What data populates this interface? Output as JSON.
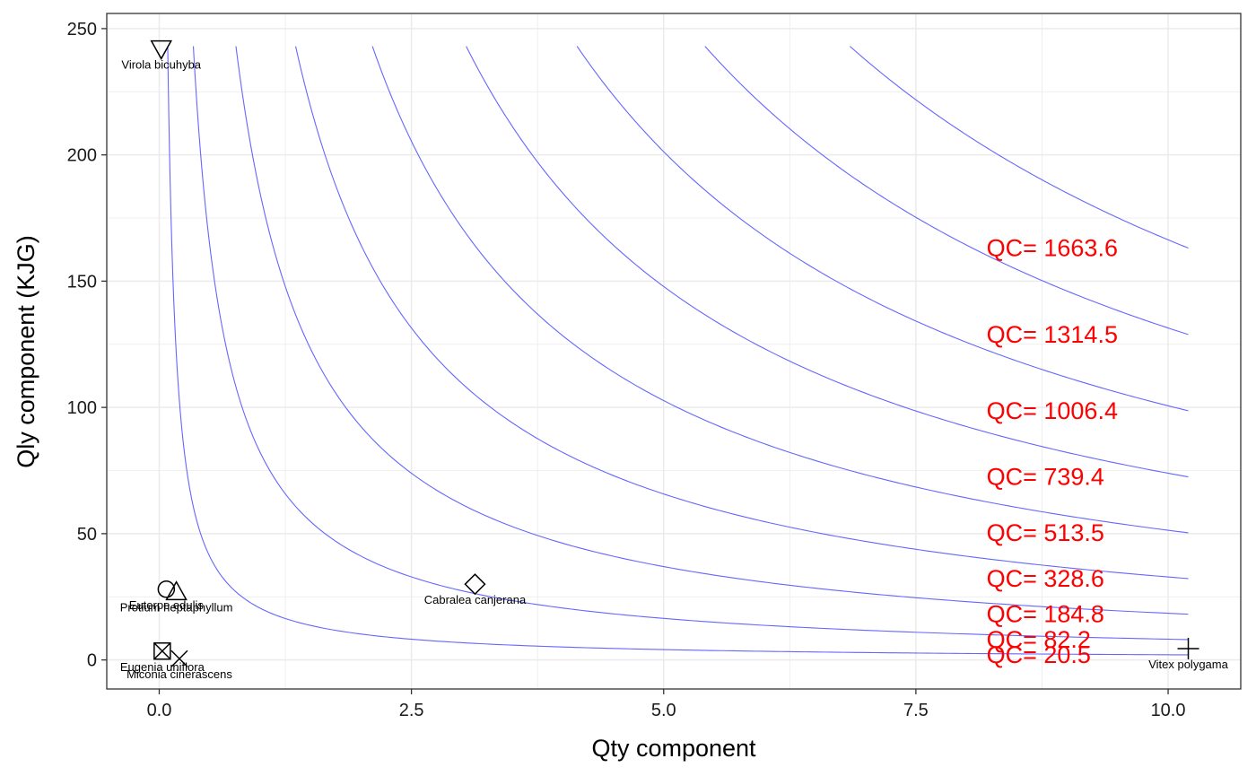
{
  "chart_data": {
    "type": "scatter",
    "title": "",
    "xlabel": "Qty component",
    "ylabel": "Qly component (KJG)",
    "xlim": [
      -0.52,
      10.72
    ],
    "ylim": [
      -11.5,
      256
    ],
    "x_ticks": [
      0.0,
      2.5,
      5.0,
      7.5,
      10.0
    ],
    "x_tick_labels": [
      "0.0",
      "2.5",
      "5.0",
      "7.5",
      "10.0"
    ],
    "y_ticks": [
      0,
      50,
      100,
      150,
      200,
      250
    ],
    "y_tick_labels": [
      "0",
      "50",
      "100",
      "150",
      "200",
      "250"
    ],
    "grid": true,
    "legend": "none",
    "colors": {
      "contour": "#6666ff",
      "contour_label": "#ff0000",
      "grid": "#ebebeb",
      "points": "#000000"
    },
    "points": [
      {
        "name": "Virola bicuhyba",
        "x": 0.02,
        "y": 242,
        "shape": "triangle-down-icon"
      },
      {
        "name": "Euterpe edulis",
        "x": 0.07,
        "y": 28,
        "shape": "circle-icon"
      },
      {
        "name": "Protium heptaphyllum",
        "x": 0.17,
        "y": 27,
        "shape": "triangle-up-icon"
      },
      {
        "name": "Cabralea canjerana",
        "x": 3.13,
        "y": 30,
        "shape": "diamond-icon"
      },
      {
        "name": "Eugenia uniflora",
        "x": 0.03,
        "y": 3.5,
        "shape": "square-cross-icon"
      },
      {
        "name": "Miconia cinerascens",
        "x": 0.2,
        "y": 0.5,
        "shape": "x-icon"
      },
      {
        "name": "Vitex polygama",
        "x": 10.2,
        "y": 4.5,
        "shape": "plus-icon"
      }
    ],
    "contours": [
      {
        "qc": 20.5,
        "label": "QC=  20.5"
      },
      {
        "qc": 82.2,
        "label": "QC=  82.2"
      },
      {
        "qc": 184.8,
        "label": "QC=  184.8"
      },
      {
        "qc": 328.6,
        "label": "QC=  328.6"
      },
      {
        "qc": 513.5,
        "label": "QC=  513.5"
      },
      {
        "qc": 739.4,
        "label": "QC=  739.4"
      },
      {
        "qc": 1006.4,
        "label": "QC=  1006.4"
      },
      {
        "qc": 1314.5,
        "label": "QC=  1314.5"
      },
      {
        "qc": 1663.6,
        "label": "QC=  1663.6"
      }
    ]
  }
}
